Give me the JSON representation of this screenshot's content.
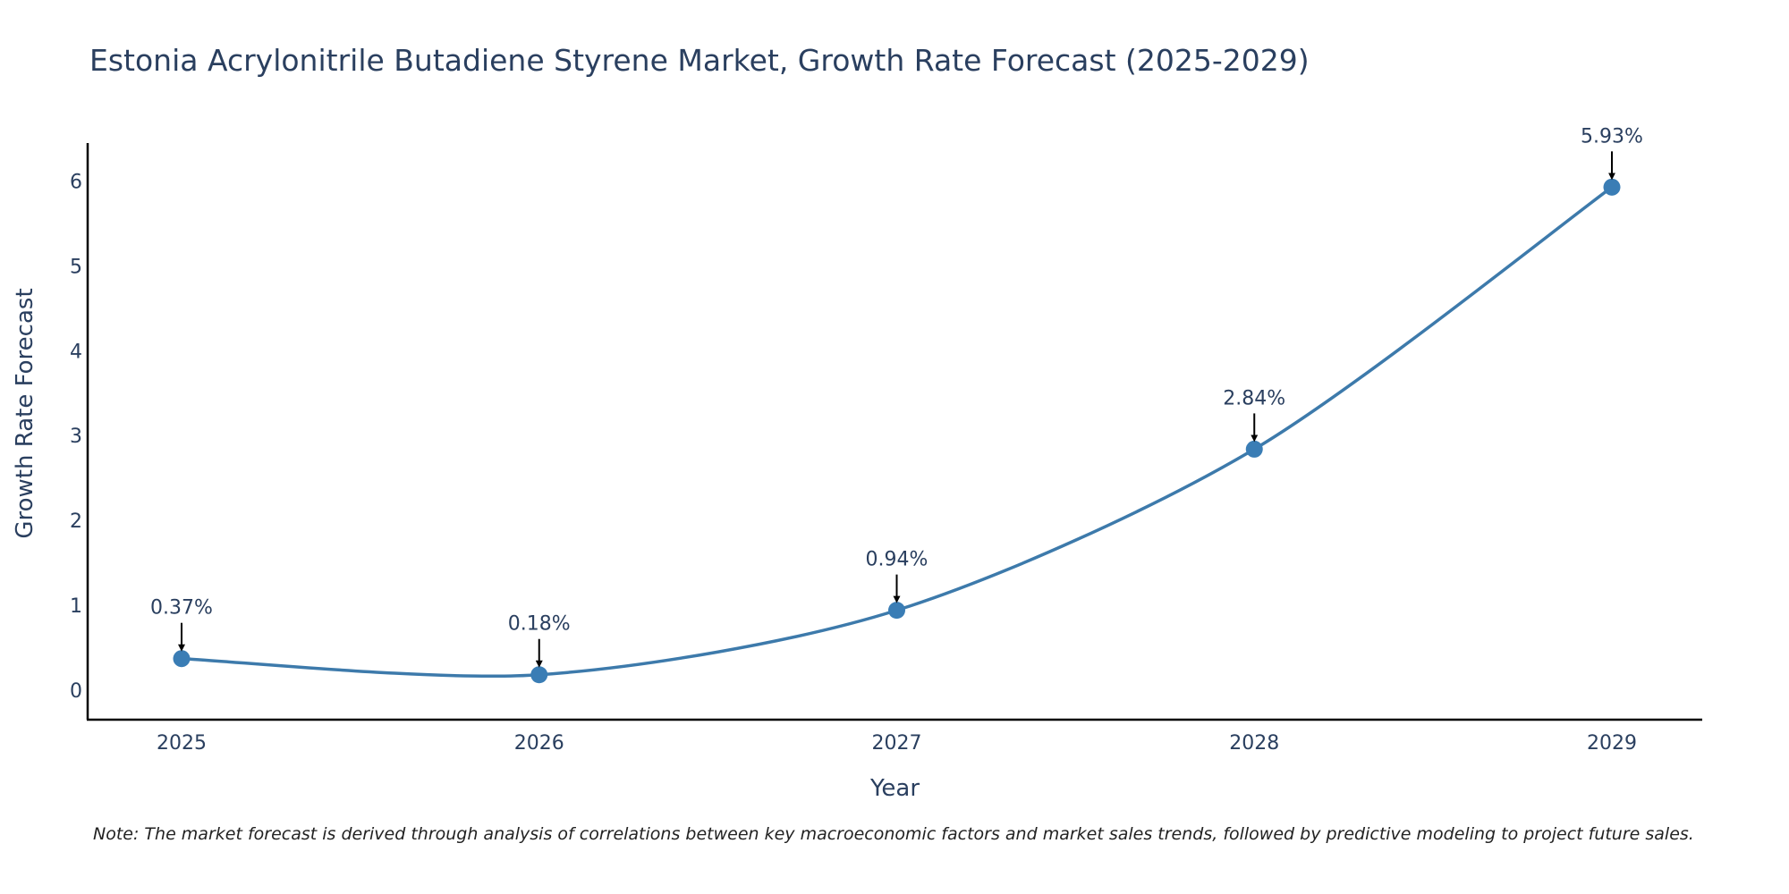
{
  "title": "Estonia Acrylonitrile Butadiene Styrene Market, Growth Rate Forecast (2025-2029)",
  "note": "Note: The market forecast is derived through analysis of correlations between key macroeconomic factors and market sales trends, followed by predictive modeling to project future sales.",
  "colors": {
    "line": "#3d7aab",
    "marker": "#3a7db5",
    "axis": "#000000",
    "text": "#2a3f5f"
  },
  "chart_data": {
    "type": "line",
    "title": "Estonia Acrylonitrile Butadiene Styrene Market, Growth Rate Forecast (2025-2029)",
    "xlabel": "Year",
    "ylabel": "Growth Rate Forecast",
    "categories": [
      "2025",
      "2026",
      "2027",
      "2028",
      "2029"
    ],
    "series": [
      {
        "name": "Growth Rate Forecast",
        "values": [
          0.37,
          0.18,
          0.94,
          2.84,
          5.93
        ]
      }
    ],
    "data_labels": [
      "0.37%",
      "0.18%",
      "0.94%",
      "2.84%",
      "5.93%"
    ],
    "y_ticks": [
      0,
      1,
      2,
      3,
      4,
      5,
      6
    ],
    "ylim": [
      -0.35,
      6.45
    ],
    "grid": false,
    "smoothing": "spline",
    "annotations": "arrow from each data label down to its point"
  }
}
